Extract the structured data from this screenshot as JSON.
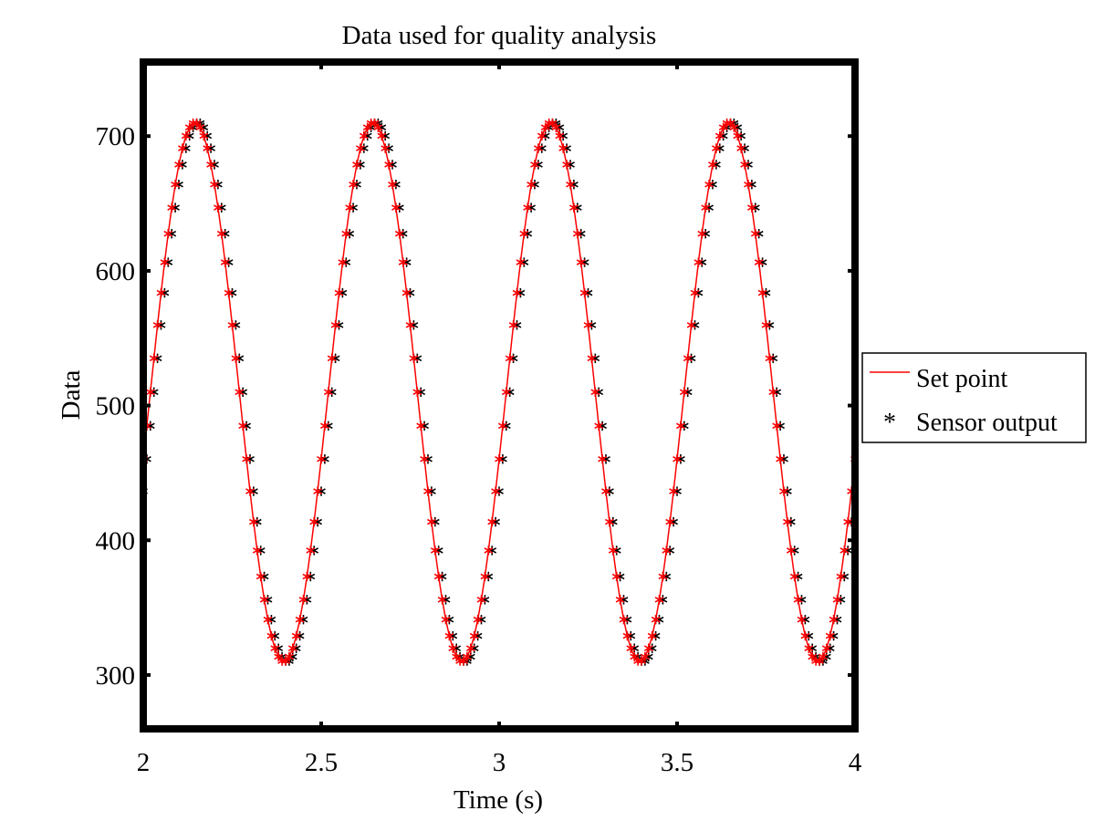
{
  "chart_data": {
    "type": "line",
    "title": "Data used for quality analysis",
    "xlabel": "Time (s)",
    "ylabel": "Data",
    "xlim": [
      2,
      4
    ],
    "ylim": [
      260,
      755
    ],
    "xticks": [
      2,
      2.5,
      3,
      3.5,
      4
    ],
    "xtick_labels": [
      "2",
      "2.5",
      "3",
      "3.5",
      "4"
    ],
    "yticks": [
      300,
      400,
      500,
      600,
      700
    ],
    "ytick_labels": [
      "300",
      "400",
      "500",
      "600",
      "700"
    ],
    "grid": false,
    "legend_position": "outside-right",
    "series": [
      {
        "name": "Set point",
        "style": "line+asterisk",
        "color": "#ff0000",
        "signal": {
          "kind": "sine",
          "mean": 510,
          "amplitude": 200,
          "frequency_hz": 2,
          "peak_time": 2.145
        },
        "sample_interval": 0.01,
        "x_range": [
          2,
          4
        ]
      },
      {
        "name": "Sensor output",
        "style": "asterisk",
        "color": "#000000",
        "signal": {
          "kind": "sine",
          "mean": 510,
          "amplitude": 200,
          "frequency_hz": 2,
          "peak_time": 2.155
        },
        "sample_interval": 0.01,
        "x_range": [
          2,
          4
        ]
      }
    ]
  }
}
